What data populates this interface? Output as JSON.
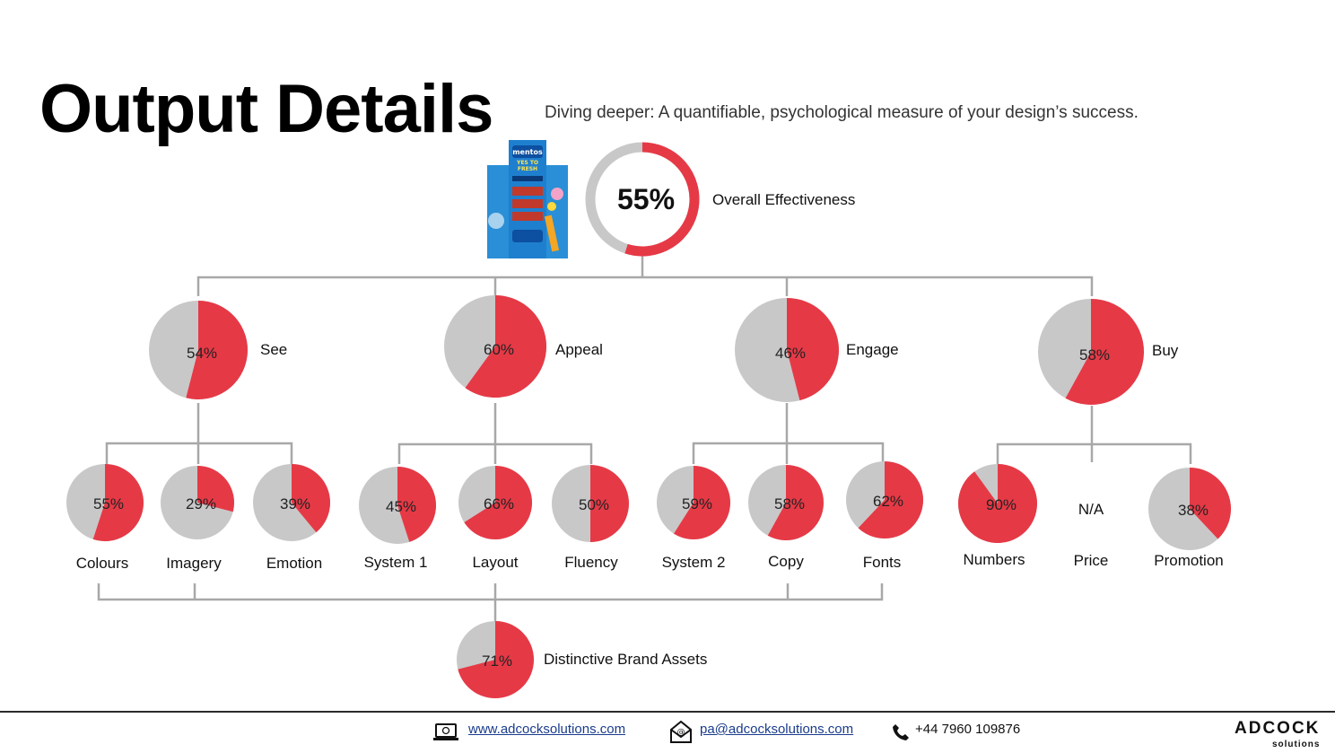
{
  "header": {
    "title": "Output Details",
    "subtitle": "Diving deeper: A quantifiable, psychological measure of your design’s success."
  },
  "colors": {
    "score": "#e63946",
    "remainder": "#c8c8c8",
    "connector": "#a8a8a8"
  },
  "product_image": {
    "icon": "mentos-display-stand-image",
    "brand": "mentos",
    "slogan_line1": "YES TO",
    "slogan_line2": "FRESH"
  },
  "overall": {
    "label": "Overall Effectiveness",
    "display": "55%",
    "value": 55
  },
  "categories": [
    {
      "key": "see",
      "label": "See",
      "display": "54%",
      "value": 54
    },
    {
      "key": "appeal",
      "label": "Appeal",
      "display": "60%",
      "value": 60
    },
    {
      "key": "engage",
      "label": "Engage",
      "display": "46%",
      "value": 46
    },
    {
      "key": "buy",
      "label": "Buy",
      "display": "58%",
      "value": 58
    }
  ],
  "metrics": [
    {
      "key": "colours",
      "label": "Colours",
      "display": "55%",
      "value": 55
    },
    {
      "key": "imagery",
      "label": "Imagery",
      "display": "29%",
      "value": 29
    },
    {
      "key": "emotion",
      "label": "Emotion",
      "display": "39%",
      "value": 39
    },
    {
      "key": "system1",
      "label": "System 1",
      "display": "45%",
      "value": 45
    },
    {
      "key": "layout",
      "label": "Layout",
      "display": "66%",
      "value": 66
    },
    {
      "key": "fluency",
      "label": "Fluency",
      "display": "50%",
      "value": 50
    },
    {
      "key": "system2",
      "label": "System 2",
      "display": "59%",
      "value": 59
    },
    {
      "key": "copy",
      "label": "Copy",
      "display": "58%",
      "value": 58
    },
    {
      "key": "fonts",
      "label": "Fonts",
      "display": "62%",
      "value": 62
    },
    {
      "key": "numbers",
      "label": "Numbers",
      "display": "90%",
      "value": 90
    },
    {
      "key": "price",
      "label": "Price",
      "display": "N/A",
      "value": null
    },
    {
      "key": "promotion",
      "label": "Promotion",
      "display": "38%",
      "value": 38
    }
  ],
  "brand_assets": {
    "label": "Distinctive Brand Assets",
    "display": "71%",
    "value": 71
  },
  "footer": {
    "website": "www.adcocksolutions.com",
    "email": "pa@adcocksolutions.com",
    "phone": "+44 7960 109876",
    "brand": "ADCOCK",
    "brand_sub": "solutions",
    "icons": [
      "laptop-icon",
      "envelope-icon",
      "phone-icon"
    ]
  }
}
